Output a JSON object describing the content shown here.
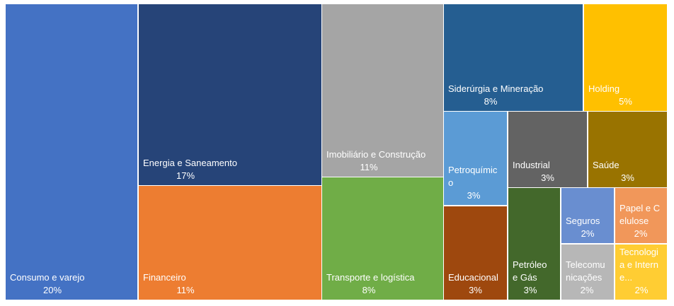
{
  "chart_data": {
    "type": "treemap",
    "title": "",
    "items": [
      {
        "label": "Consumo e varejo",
        "value": "20%",
        "color": "#4472C4"
      },
      {
        "label": "Energia e Saneamento",
        "value": "17%",
        "color": "#264478"
      },
      {
        "label": "Financeiro",
        "value": "11%",
        "color": "#ED7D31"
      },
      {
        "label": "Imobiliário e Construção",
        "value": "11%",
        "color": "#A5A5A5"
      },
      {
        "label": "Transporte e logística",
        "value": "8%",
        "color": "#70AD47"
      },
      {
        "label": "Siderúrgia e Mineração",
        "value": "8%",
        "color": "#255E91"
      },
      {
        "label": "Holding",
        "value": "5%",
        "color": "#FFC000"
      },
      {
        "label": "Petroquímico",
        "value": "3%",
        "color": "#5B9BD5"
      },
      {
        "label": "Industrial",
        "value": "3%",
        "color": "#636363"
      },
      {
        "label": "Saúde",
        "value": "3%",
        "color": "#997300"
      },
      {
        "label": "Educacional",
        "value": "3%",
        "color": "#9E480E"
      },
      {
        "label": "Petróleo e Gás",
        "value": "3%",
        "color": "#43682B"
      },
      {
        "label": "Seguros",
        "value": "2%",
        "color": "#698ED0"
      },
      {
        "label": "Papel e Celulose",
        "value": "2%",
        "color": "#F1975A"
      },
      {
        "label": "Telecomunicações",
        "value": "2%",
        "color": "#B7B7B7"
      },
      {
        "label": "Tecnologia e Interne...",
        "value": "2%",
        "color": "#FFCD33"
      }
    ]
  }
}
